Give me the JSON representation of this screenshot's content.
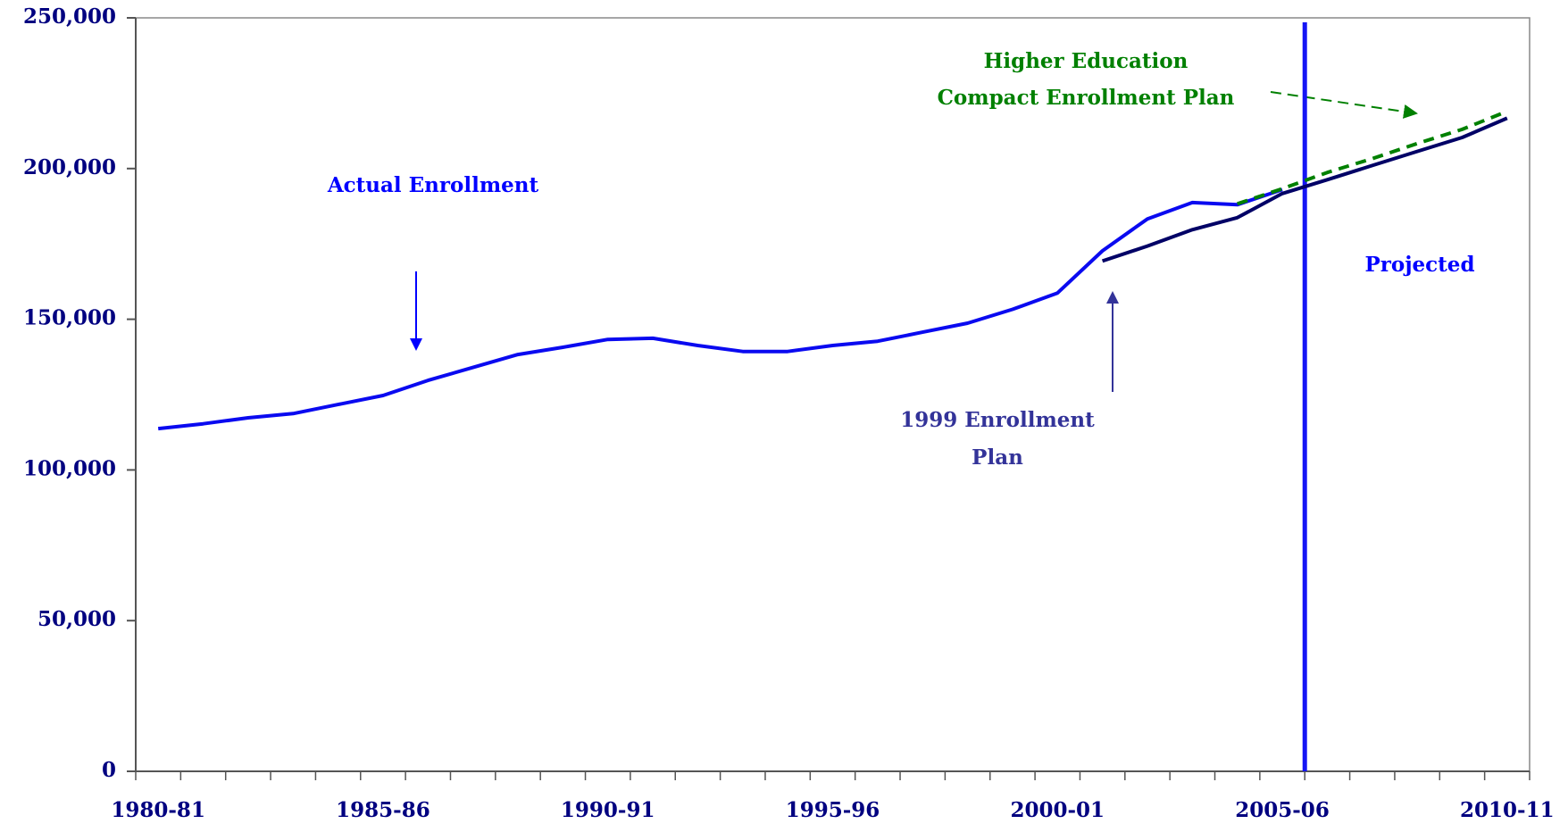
{
  "chart_data": {
    "type": "line",
    "categories": [
      "1980-81",
      null,
      null,
      null,
      null,
      "1985-86",
      null,
      null,
      null,
      null,
      "1990-91",
      null,
      null,
      null,
      null,
      "1995-96",
      null,
      null,
      null,
      null,
      "2000-01",
      null,
      null,
      null,
      null,
      "2005-06",
      null,
      null,
      null,
      null,
      "2010-11"
    ],
    "series": [
      {
        "name": "Actual Enrollment",
        "color": "#0a0af0",
        "dashed": false,
        "values": [
          113700,
          115300,
          117300,
          118700,
          121700,
          124700,
          129700,
          134000,
          138300,
          140700,
          143300,
          143700,
          141300,
          139300,
          139300,
          141300,
          142700,
          145700,
          148700,
          153300,
          158700,
          172700,
          183300,
          188700,
          188000,
          193000,
          null,
          null,
          null,
          null,
          null
        ]
      },
      {
        "name": "1999 Enrollment Plan",
        "color": "#000066",
        "dashed": false,
        "values": [
          null,
          null,
          null,
          null,
          null,
          null,
          null,
          null,
          null,
          null,
          null,
          null,
          null,
          null,
          null,
          null,
          null,
          null,
          null,
          null,
          null,
          169300,
          174300,
          179700,
          183700,
          191700,
          196300,
          201000,
          205700,
          210300,
          216700
        ]
      },
      {
        "name": "Higher Education Compact Enrollment Plan",
        "color": "#008000",
        "dashed": true,
        "values": [
          null,
          null,
          null,
          null,
          null,
          null,
          null,
          null,
          null,
          null,
          null,
          null,
          null,
          null,
          null,
          null,
          null,
          null,
          null,
          null,
          null,
          null,
          null,
          null,
          188300,
          193300,
          198700,
          203300,
          208300,
          213000,
          219000
        ]
      }
    ],
    "annotations": [
      {
        "lines": [
          "Actual Enrollment"
        ],
        "color": "#0000ff"
      },
      {
        "lines": [
          "Higher Education",
          "Compact Enrollment Plan"
        ],
        "color": "#008000"
      },
      {
        "lines": [
          "1999 Enrollment",
          "Plan"
        ],
        "color": "#333399"
      },
      {
        "lines": [
          "Projected"
        ],
        "color": "#0000ff"
      }
    ],
    "ylim": [
      0,
      250000
    ],
    "yticks": [
      0,
      {
        "value": 50000,
        "label": "50,000"
      },
      {
        "value": 100000,
        "label": "100,000"
      },
      {
        "value": 150000,
        "label": "150,000"
      },
      {
        "value": 200000,
        "label": "200,000"
      },
      {
        "value": 250000,
        "label": "250,000"
      }
    ],
    "grid": false
  }
}
